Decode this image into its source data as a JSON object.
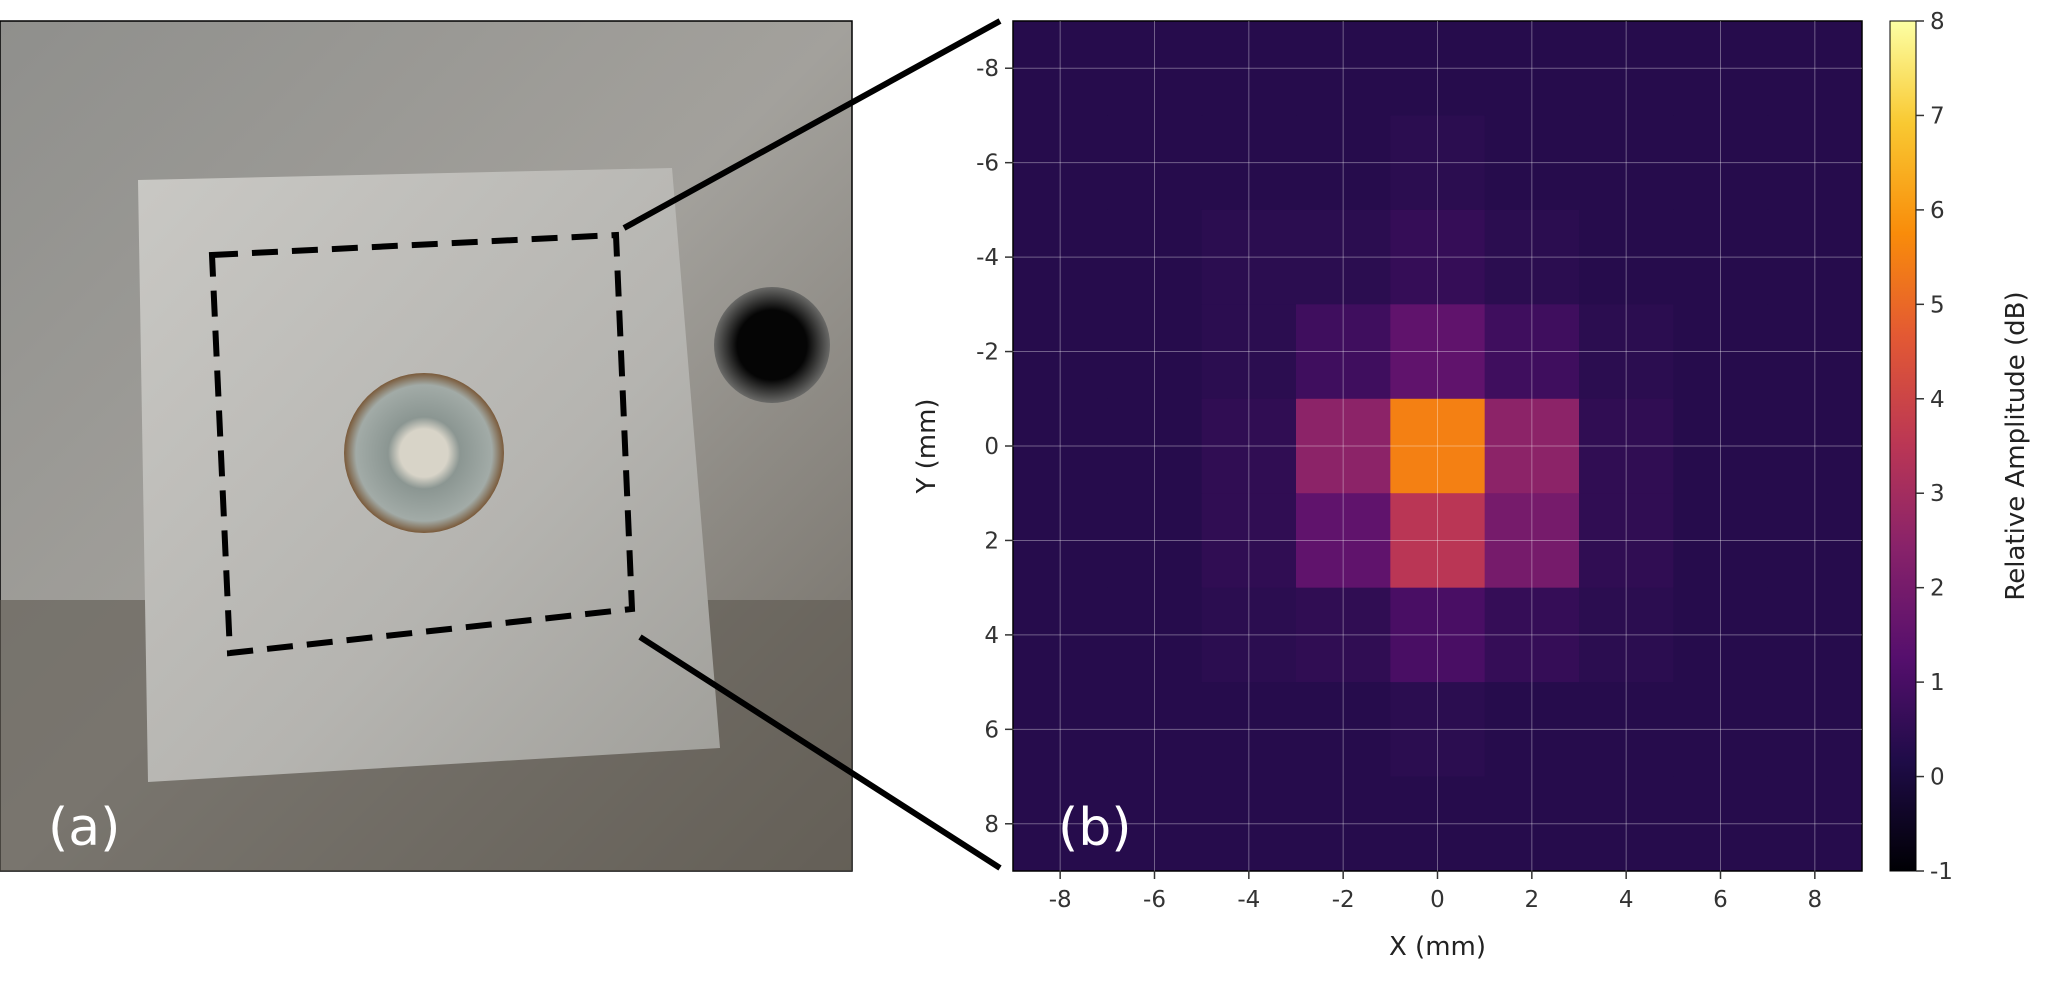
{
  "panel_a": {
    "label": "(a)"
  },
  "chart_data": {
    "type": "heatmap",
    "panel_label": "(b)",
    "x_label": "X (mm)",
    "y_label": "Y (mm)",
    "colorbar_label": "Relative Amplitude (dB)",
    "colormap": "inferno",
    "grid": true,
    "y_inverted": true,
    "xlim": [
      -9,
      9
    ],
    "ylim": [
      -9,
      9
    ],
    "clim": [
      -1,
      8
    ],
    "xticks": [
      -8,
      -6,
      -4,
      -2,
      0,
      2,
      4,
      6,
      8
    ],
    "yticks": [
      -8,
      -6,
      -4,
      -2,
      0,
      2,
      4,
      6,
      8
    ],
    "cticks": [
      -1,
      0,
      1,
      2,
      3,
      4,
      5,
      6,
      7,
      8
    ],
    "x": [
      -8,
      -6,
      -4,
      -2,
      0,
      2,
      4,
      6,
      8
    ],
    "y": [
      -8,
      -6,
      -4,
      -2,
      0,
      2,
      4,
      6,
      8
    ],
    "z": [
      [
        0.3,
        0.3,
        0.3,
        0.3,
        0.3,
        0.3,
        0.3,
        0.3,
        0.3
      ],
      [
        0.3,
        0.3,
        0.3,
        0.3,
        0.4,
        0.3,
        0.3,
        0.3,
        0.3
      ],
      [
        0.3,
        0.3,
        0.4,
        0.4,
        0.6,
        0.4,
        0.3,
        0.3,
        0.3
      ],
      [
        0.3,
        0.3,
        0.4,
        0.8,
        1.5,
        0.8,
        0.4,
        0.3,
        0.3
      ],
      [
        0.3,
        0.3,
        0.5,
        2.5,
        5.5,
        2.5,
        0.5,
        0.3,
        0.3
      ],
      [
        0.3,
        0.3,
        0.5,
        1.5,
        3.5,
        2.0,
        0.5,
        0.3,
        0.3
      ],
      [
        0.3,
        0.3,
        0.4,
        0.5,
        1.0,
        0.6,
        0.4,
        0.3,
        0.3
      ],
      [
        0.3,
        0.3,
        0.3,
        0.3,
        0.4,
        0.3,
        0.3,
        0.3,
        0.3
      ],
      [
        0.3,
        0.3,
        0.3,
        0.3,
        0.3,
        0.3,
        0.3,
        0.3,
        0.3
      ]
    ]
  }
}
